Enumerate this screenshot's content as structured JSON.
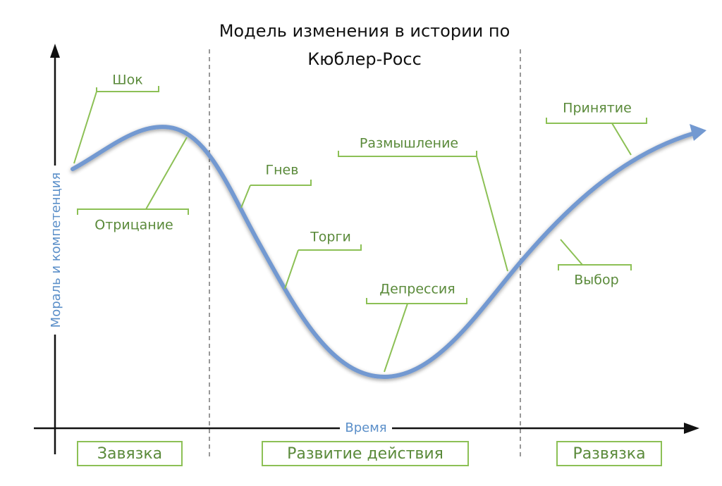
{
  "title": [
    "Модель изменения в истории по",
    "Кюблер-Росс"
  ],
  "axes": {
    "y_label": "Мораль и компетенция",
    "x_label": "Время"
  },
  "stages": [
    "Шок",
    "Отрицание",
    "Гнев",
    "Торги",
    "Депрессия",
    "Размышление",
    "Принятие",
    "Выбор"
  ],
  "sections": [
    "Завязка",
    "Развитие действия",
    "Развязка"
  ]
}
